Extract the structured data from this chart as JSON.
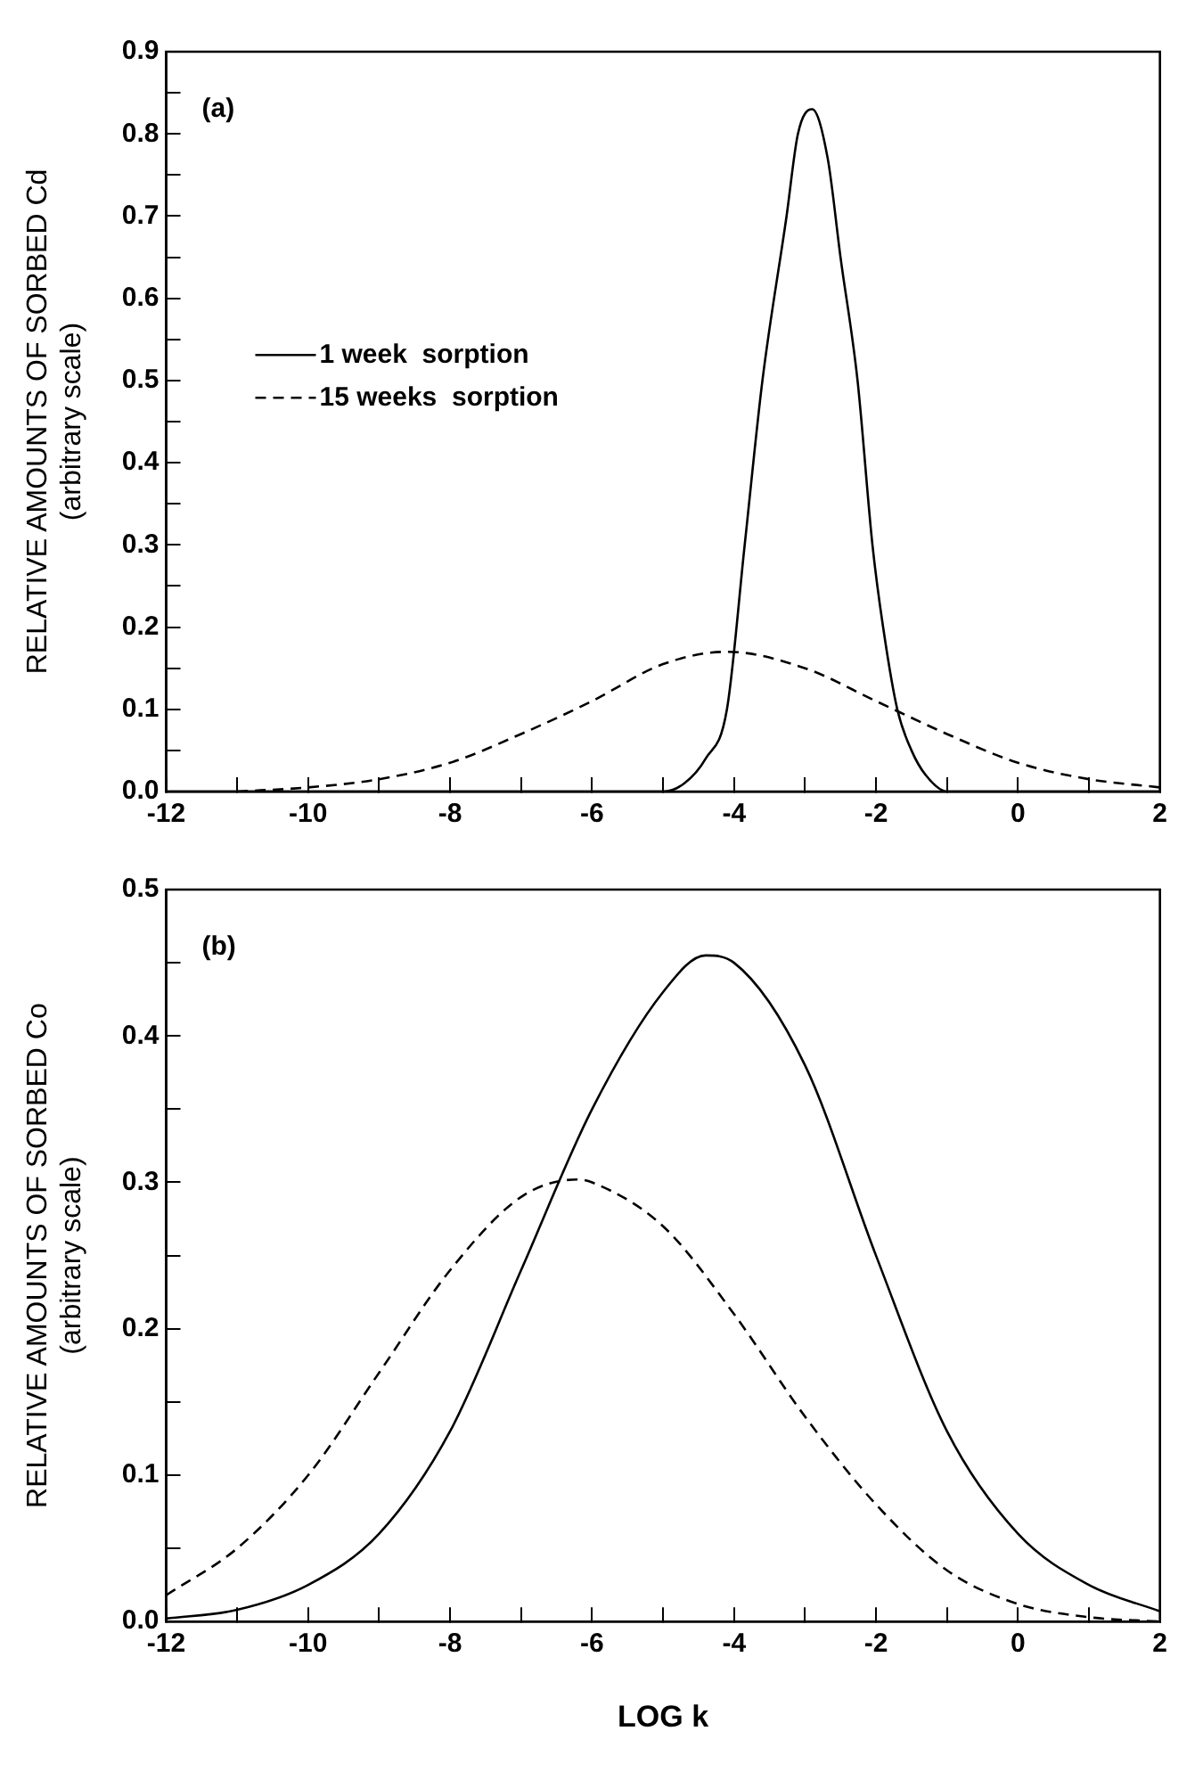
{
  "chart_data": [
    {
      "type": "line",
      "ylabel": "RELATIVE AMOUNTS OF SORBED Cd\n(arbitrary scale)",
      "annotations": [
        "(a)"
      ],
      "legend": "top left",
      "grid": false,
      "marker": "none",
      "xlim": [
        -12,
        2
      ],
      "xticks": [
        -12,
        {
          "value": -11,
          "label": null
        },
        -10,
        {
          "value": -9,
          "label": null
        },
        -8,
        {
          "value": -7,
          "label": null
        },
        -6,
        {
          "value": -5,
          "label": null
        },
        -4,
        {
          "value": -3,
          "label": null
        },
        -2,
        {
          "value": -1,
          "label": null
        },
        0,
        {
          "value": 1,
          "label": null
        },
        2
      ],
      "ylim": [
        0,
        0.9
      ],
      "yticks": [
        {
          "value": 0,
          "label": "0.0"
        },
        {
          "value": 0.05,
          "label": null
        },
        0.1,
        {
          "value": 0.15,
          "label": null
        },
        0.2,
        {
          "value": 0.25,
          "label": null
        },
        0.3,
        {
          "value": 0.35,
          "label": null
        },
        0.4,
        {
          "value": 0.45,
          "label": null
        },
        0.5,
        {
          "value": 0.55,
          "label": null
        },
        0.6,
        {
          "value": 0.65,
          "label": null
        },
        0.7,
        {
          "value": 0.75,
          "label": null
        },
        0.8,
        {
          "value": 0.85,
          "label": null
        },
        0.9
      ],
      "series": [
        {
          "name": "1 week  sorption",
          "color": "#000000",
          "line_style": "solid",
          "x": [
            -12,
            -5,
            -4.7,
            -4.4,
            -4.1,
            -3.85,
            -3.6,
            -3.26,
            -3.1,
            -2.9,
            -2.68,
            -2.5,
            -2.26,
            -2.05,
            -1.9,
            -1.7,
            -1.5,
            -1.3,
            -1.0,
            2
          ],
          "values": [
            0,
            0,
            0.01,
            0.04,
            0.1,
            0.3,
            0.5,
            0.7,
            0.8,
            0.83,
            0.77,
            0.65,
            0.5,
            0.3,
            0.2,
            0.1,
            0.05,
            0.02,
            0,
            0
          ]
        },
        {
          "name": "15 weeks  sorption",
          "color": "#000000",
          "line_style": "dashed",
          "x": [
            -11,
            -10,
            -9,
            -8,
            -7,
            -6,
            -5,
            -4.1,
            -3,
            -2,
            -1,
            0,
            1,
            2
          ],
          "values": [
            0,
            0.005,
            0.015,
            0.035,
            0.07,
            0.11,
            0.155,
            0.17,
            0.15,
            0.11,
            0.07,
            0.035,
            0.015,
            0.005
          ]
        }
      ]
    },
    {
      "type": "line",
      "xlabel": "LOG k",
      "ylabel": "RELATIVE AMOUNTS OF SORBED Co\n(arbitrary scale)",
      "annotations": [
        "(b)"
      ],
      "grid": false,
      "marker": "none",
      "xlim": [
        -12,
        2
      ],
      "xticks": [
        -12,
        {
          "value": -11,
          "label": null
        },
        -10,
        {
          "value": -9,
          "label": null
        },
        -8,
        {
          "value": -7,
          "label": null
        },
        -6,
        {
          "value": -5,
          "label": null
        },
        -4,
        {
          "value": -3,
          "label": null
        },
        -2,
        {
          "value": -1,
          "label": null
        },
        0,
        {
          "value": 1,
          "label": null
        },
        2
      ],
      "ylim": [
        0,
        0.5
      ],
      "yticks": [
        {
          "value": 0,
          "label": "0.0"
        },
        {
          "value": 0.05,
          "label": null
        },
        0.1,
        {
          "value": 0.15,
          "label": null
        },
        0.2,
        {
          "value": 0.25,
          "label": null
        },
        0.3,
        {
          "value": 0.35,
          "label": null
        },
        0.4,
        {
          "value": 0.45,
          "label": null
        },
        0.5
      ],
      "series": [
        {
          "color": "#000000",
          "line_style": "solid",
          "x": [
            -12,
            -11,
            -10,
            -9,
            -8,
            -7,
            -6,
            -5,
            -4.4,
            -4,
            -3,
            -2,
            -1,
            0,
            1,
            2
          ],
          "values": [
            0.002,
            0.008,
            0.025,
            0.06,
            0.13,
            0.24,
            0.35,
            0.43,
            0.455,
            0.45,
            0.38,
            0.25,
            0.13,
            0.06,
            0.025,
            0.007
          ]
        },
        {
          "color": "#000000",
          "line_style": "dashed",
          "x": [
            -12,
            -11,
            -10,
            -9,
            -8,
            -7,
            -6.2,
            -6,
            -5,
            -4,
            -3,
            -2,
            -1,
            0,
            1,
            2
          ],
          "values": [
            0.018,
            0.05,
            0.1,
            0.17,
            0.24,
            0.29,
            0.302,
            0.3,
            0.27,
            0.21,
            0.14,
            0.08,
            0.035,
            0.012,
            0.003,
            0
          ]
        }
      ]
    }
  ]
}
